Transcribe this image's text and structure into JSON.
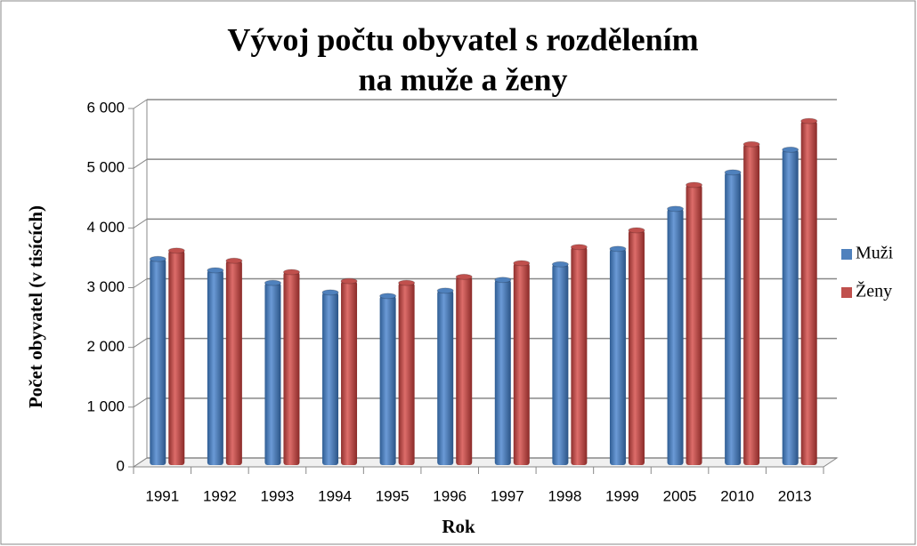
{
  "chart_data": {
    "type": "bar",
    "title": [
      "Vývoj počtu obyvatel s rozdělením",
      "na muže a ženy"
    ],
    "x_label": "Rok",
    "y_label": "Počet obyvatel (v tisících)",
    "categories": [
      "1991",
      "1992",
      "1993",
      "1994",
      "1995",
      "1996",
      "1997",
      "1998",
      "1999",
      "2005",
      "2010",
      "2013"
    ],
    "series": [
      {
        "name": "Muži",
        "color": "#4f81bd",
        "values": [
          3480,
          3290,
          3080,
          2920,
          2860,
          2950,
          3130,
          3390,
          3650,
          4320,
          4930,
          5310
        ]
      },
      {
        "name": "Ženy",
        "color": "#c0504d",
        "values": [
          3620,
          3450,
          3260,
          3110,
          3080,
          3180,
          3410,
          3680,
          3960,
          4720,
          5400,
          5790
        ]
      }
    ],
    "ylim": [
      0,
      6000
    ],
    "yticks": [
      0,
      {
        "value": 1000,
        "label": "1 000"
      },
      {
        "value": 2000,
        "label": "2 000"
      },
      {
        "value": 3000,
        "label": "3 000"
      },
      {
        "value": 4000,
        "label": "4 000"
      },
      {
        "value": 5000,
        "label": "5 000"
      },
      {
        "value": 6000,
        "label": "6 000"
      }
    ],
    "grid": true,
    "legend": "right"
  }
}
